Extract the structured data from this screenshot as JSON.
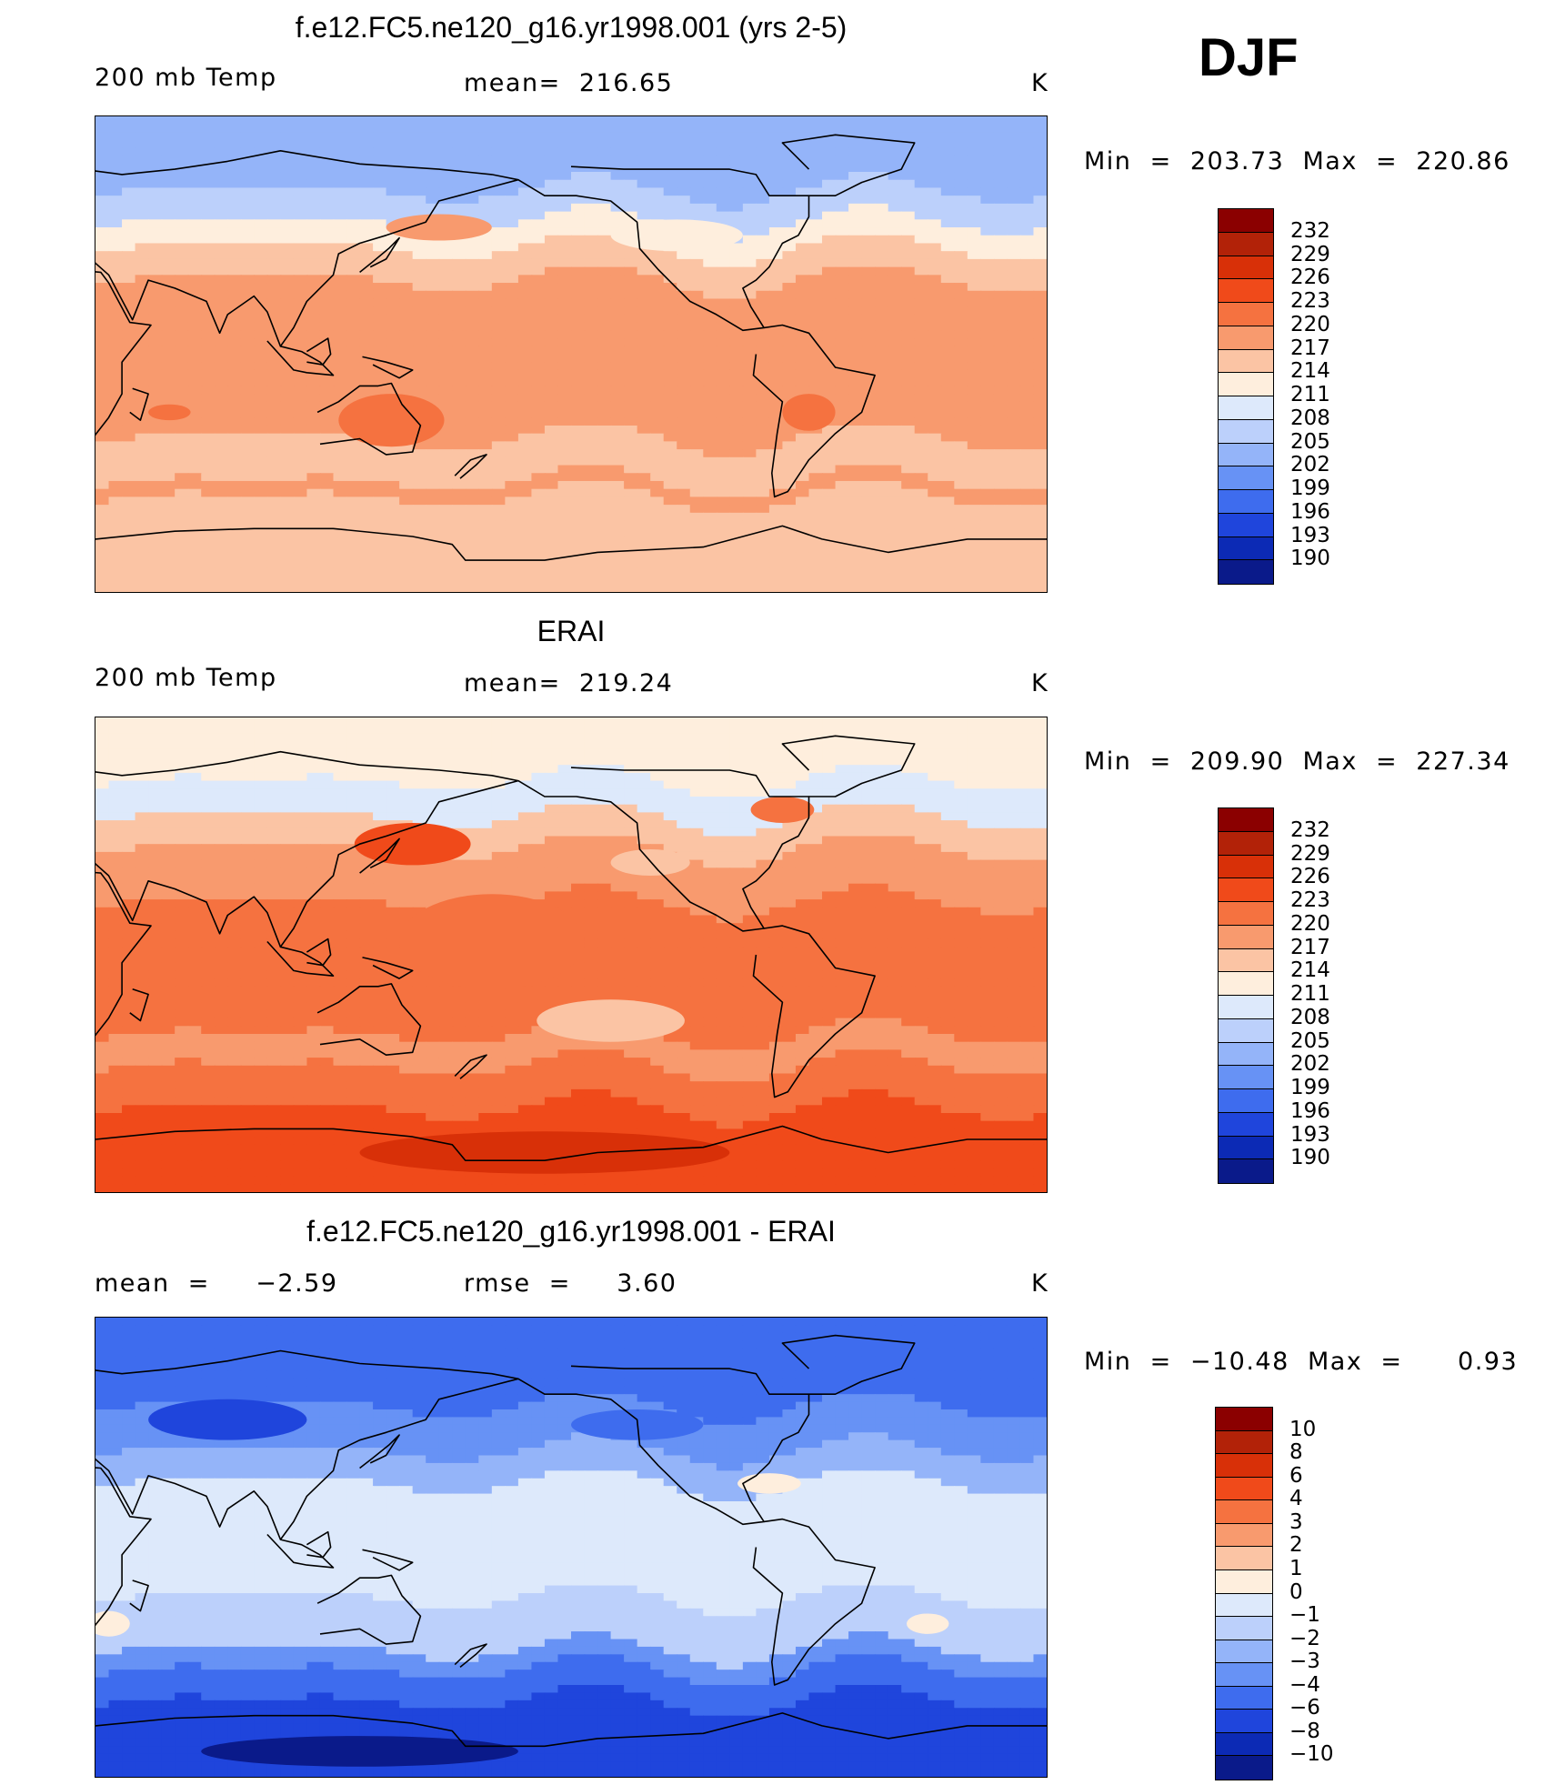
{
  "season": "DJF",
  "panels": [
    {
      "title": "f.e12.FC5.ne120_g16.yr1998.001 (yrs 2-5)",
      "left_label": "200 mb Temp",
      "center_label": "mean=  216.65",
      "units": "K",
      "minmax": "Min  =  203.73  Max  =  220.86",
      "colorbar_labels": [
        "232",
        "229",
        "226",
        "223",
        "220",
        "217",
        "214",
        "211",
        "208",
        "205",
        "202",
        "199",
        "196",
        "193",
        "190"
      ],
      "map_style": "model"
    },
    {
      "title": "ERAI",
      "left_label": "200 mb Temp",
      "center_label": "mean=  219.24",
      "units": "K",
      "minmax": "Min  =  209.90  Max  =  227.34",
      "colorbar_labels": [
        "232",
        "229",
        "226",
        "223",
        "220",
        "217",
        "214",
        "211",
        "208",
        "205",
        "202",
        "199",
        "196",
        "193",
        "190"
      ],
      "map_style": "obs"
    },
    {
      "title": "f.e12.FC5.ne120_g16.yr1998.001 - ERAI",
      "left_label": "mean  =     −2.59",
      "center_label": "rmse  =     3.60",
      "units": "K",
      "minmax": "Min  =  −10.48  Max  =      0.93",
      "colorbar_labels": [
        "10",
        "8",
        "6",
        "4",
        "3",
        "2",
        "1",
        "0",
        "−1",
        "−2",
        "−3",
        "−4",
        "−6",
        "−8",
        "−10"
      ],
      "map_style": "diff"
    }
  ],
  "colors": {
    "scale": [
      "#8b0000",
      "#b22208",
      "#d83008",
      "#f04a1a",
      "#f57240",
      "#f89a6e",
      "#fbc4a4",
      "#feeedd",
      "#dde9fb",
      "#bcd0fb",
      "#94b4f9",
      "#6792f5",
      "#3e6cee",
      "#1f45dc",
      "#0c2ab5",
      "#0a1a8a"
    ]
  }
}
